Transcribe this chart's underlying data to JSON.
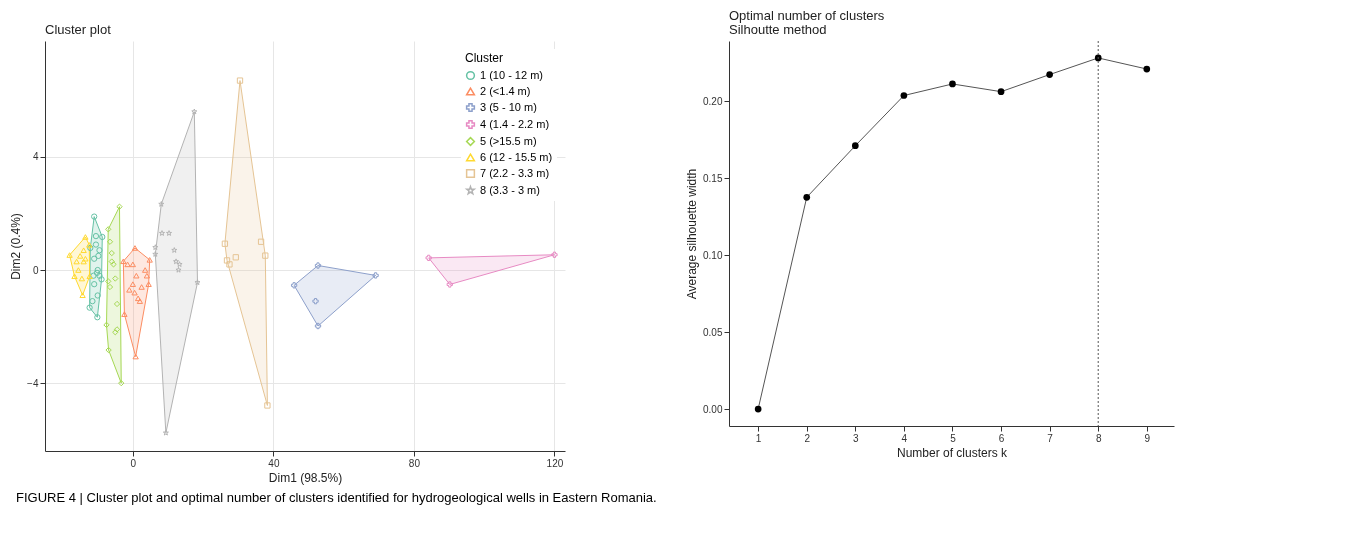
{
  "chart_data": [
    {
      "type": "scatter",
      "title": "Cluster plot",
      "xlabel": "Dim1 (98.5%)",
      "ylabel": "Dim2 (0.4%)",
      "legend_title": "Cluster",
      "legend": "top right",
      "grid": true,
      "xlim": [
        -25,
        123
      ],
      "ylim": [
        -6.4,
        8.1
      ],
      "xticks": [
        0,
        40,
        80,
        120
      ],
      "yticks": [
        -4,
        0,
        4
      ],
      "annotations": [
        "FIGURE 4 | Cluster plot and optimal number of clusters identified for hydrogeological wells in Eastern Romania."
      ],
      "series": [
        {
          "type": "area",
          "color": "#66c2a5",
          "x": [
            -11.0,
            -8.7,
            -8.9,
            -10.1,
            -12.3,
            -12.1,
            -11.0
          ],
          "values": [
            1.89,
            1.17,
            -0.33,
            -1.67,
            -1.33,
            0.78,
            1.89
          ]
        },
        {
          "type": "area",
          "color": "#fc8d62",
          "x": [
            0.6,
            4.8,
            4.5,
            0.8,
            -2.4,
            -2.7,
            0.6
          ],
          "values": [
            0.78,
            0.36,
            -0.5,
            -3.06,
            -1.56,
            0.31,
            0.78
          ]
        },
        {
          "type": "area",
          "color": "#8da0cb",
          "x": [
            52.7,
            69.1,
            52.7,
            45.9,
            52.7
          ],
          "values": [
            0.16,
            -0.19,
            -1.98,
            -0.54,
            0.16
          ]
        },
        {
          "type": "area",
          "color": "#e78ac3",
          "x": [
            84.2,
            120,
            90.2,
            84.2
          ],
          "values": [
            0.43,
            0.54,
            -0.51,
            0.43
          ]
        },
        {
          "type": "area",
          "color": "#a6d854",
          "x": [
            -3.8,
            -3.3,
            -6.9,
            -7.5,
            -7.0,
            -3.8
          ],
          "values": [
            2.24,
            -4.0,
            -2.83,
            -1.94,
            1.44,
            2.24
          ]
        },
        {
          "type": "area",
          "color": "#ffd92f",
          "x": [
            -18.0,
            -13.5,
            -12.4,
            -12.3,
            -14.3,
            -16.6,
            -18.0
          ],
          "values": [
            0.53,
            1.17,
            0.89,
            -0.22,
            -0.89,
            -0.22,
            0.53
          ]
        },
        {
          "type": "area",
          "color": "#e5c494",
          "x": [
            30.5,
            37.7,
            38.3,
            26.8,
            26.2,
            30.5
          ],
          "values": [
            6.7,
            0.51,
            -4.79,
            0.34,
            0.93,
            6.7
          ]
        },
        {
          "type": "area",
          "color": "#b3b3b3",
          "x": [
            8.1,
            17.5,
            18.4,
            9.4,
            6.4,
            8.1
          ],
          "values": [
            2.33,
            5.6,
            -0.44,
            -5.76,
            0.56,
            2.33
          ]
        },
        {
          "type": "scatter",
          "name": "1 (10 - 12 m)",
          "color": "#66c2a5",
          "marker": "circle",
          "x": [
            -11.0,
            -8.7,
            -8.9,
            -10.1,
            -12.3,
            -12.1,
            -10.5,
            -9.5,
            -11,
            -10,
            -9.5,
            -11,
            -10,
            -11.5,
            -10.5,
            -9.8,
            -11.2,
            -10.2
          ],
          "values": [
            1.89,
            1.17,
            -0.33,
            -1.67,
            -1.33,
            0.78,
            1.2,
            0.7,
            0.4,
            0,
            -0.2,
            -0.5,
            -0.9,
            -1.1,
            0.9,
            0.5,
            -0.2,
            -0.1
          ]
        },
        {
          "type": "scatter",
          "name": "2 (<1.4 m)",
          "color": "#fc8d62",
          "marker": "triangle",
          "x": [
            0.6,
            4.8,
            4.5,
            0.8,
            -2.4,
            -2.7,
            -1.5,
            0,
            1,
            2.5,
            3.5,
            4,
            1.5,
            -1,
            0.5,
            2,
            0
          ],
          "values": [
            0.78,
            0.36,
            -0.5,
            -3.06,
            -1.56,
            0.31,
            0.2,
            0.2,
            -0.2,
            -0.6,
            0.0,
            -0.2,
            -1.0,
            -0.7,
            -0.8,
            -1.1,
            -0.5
          ]
        },
        {
          "type": "scatter",
          "name": "3 (5 - 10 m)",
          "color": "#8da0cb",
          "marker": "cross",
          "x": [
            52.7,
            69.1,
            52.7,
            45.9,
            52
          ],
          "values": [
            0.16,
            -0.19,
            -1.98,
            -0.54,
            -1.1
          ]
        },
        {
          "type": "scatter",
          "name": "4 (1.4 - 2.2 m)",
          "color": "#e78ac3",
          "marker": "cross",
          "x": [
            84.2,
            120,
            90.2
          ],
          "values": [
            0.43,
            0.54,
            -0.51
          ]
        },
        {
          "type": "scatter",
          "name": "5 (>15.5 m)",
          "color": "#a6d854",
          "marker": "diamond",
          "x": [
            -3.8,
            -3.3,
            -6.9,
            -7.5,
            -7.0,
            -6.5,
            -6,
            -7,
            -5.5,
            -6.5,
            -4.5,
            -5,
            -4.5,
            -5,
            -6
          ],
          "values": [
            2.24,
            -4.0,
            -2.83,
            -1.94,
            1.44,
            1.0,
            0.3,
            -0.4,
            0.2,
            -0.6,
            -1.2,
            -2.2,
            -2.1,
            -0.3,
            0.6
          ]
        },
        {
          "type": "scatter",
          "name": "6 (12 - 15.5 m)",
          "color": "#ffd92f",
          "marker": "triangle",
          "x": [
            -18.0,
            -13.5,
            -12.4,
            -12.3,
            -14.3,
            -16.6,
            -15,
            -14,
            -15.5,
            -14,
            -13.5,
            -14.5,
            -16
          ],
          "values": [
            0.53,
            1.17,
            0.89,
            -0.22,
            -0.89,
            -0.22,
            0.5,
            0.3,
            0.0,
            0.7,
            0.4,
            -0.3,
            0.3
          ]
        },
        {
          "type": "scatter",
          "name": "7 (2.2 - 3.3 m)",
          "color": "#e5c494",
          "marker": "square",
          "x": [
            30.5,
            37.7,
            38.3,
            26.8,
            26.2,
            27.5,
            29.3,
            36.5
          ],
          "values": [
            6.7,
            0.51,
            -4.79,
            0.34,
            0.93,
            0.2,
            0.45,
            1.0
          ]
        },
        {
          "type": "scatter",
          "name": "8 (3.3 - 3 m)",
          "color": "#b3b3b3",
          "marker": "star",
          "x": [
            8.1,
            17.5,
            18.4,
            9.4,
            6.4,
            8.3,
            10.3,
            6.4,
            11.8,
            12.3,
            13.3,
            13
          ],
          "values": [
            2.33,
            5.6,
            -0.44,
            -5.76,
            0.56,
            1.3,
            1.3,
            0.8,
            0.7,
            0.3,
            0.2,
            0.0
          ]
        }
      ]
    },
    {
      "type": "line",
      "title": "Optimal number of clusters",
      "subtitle": "Silhoutte method",
      "xlabel": "Number of clusters k",
      "ylabel": "Average silhouette width",
      "marker": "circle",
      "grid": false,
      "xlim": [
        0.4,
        9.56
      ],
      "ylim": [
        -0.011,
        0.239
      ],
      "xticks": [
        1,
        2,
        3,
        4,
        5,
        6,
        7,
        8,
        9
      ],
      "yticks": [
        {
          "value": 0,
          "label": "0.00"
        },
        {
          "value": 0.05,
          "label": "0.05"
        },
        {
          "value": 0.1,
          "label": "0.10"
        },
        {
          "value": 0.15,
          "label": "0.15"
        },
        {
          "value": 0.2,
          "label": "0.20"
        }
      ],
      "ref_lines": [
        {
          "axis": "x",
          "value": 8,
          "line_style": "dotted",
          "color": "#555555"
        }
      ],
      "series": [
        {
          "color": "#555555",
          "x": [
            1,
            2,
            3,
            4,
            5,
            6,
            7,
            8,
            9
          ],
          "values": [
            0,
            0.1375,
            0.171,
            0.2036,
            0.2111,
            0.2061,
            0.2172,
            0.228,
            0.2208
          ]
        }
      ]
    }
  ]
}
